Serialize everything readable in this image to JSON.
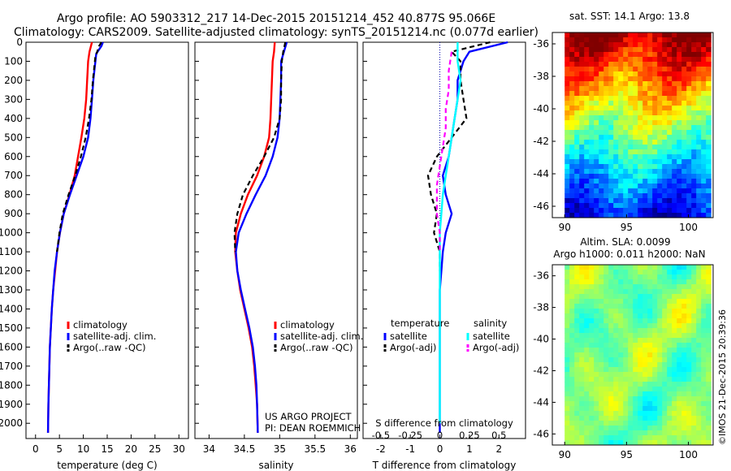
{
  "title": {
    "line1": "Argo profile: AO 5903312_217 14-Dec-2015 20151214_452 40.877S 95.066E",
    "line2": "Climatology: CARS2009. Satellite-adjusted climatology: synTS_20151214.nc (0.077d earlier)"
  },
  "colors": {
    "climatology": "#ff0000",
    "satellite": "#0000ff",
    "argo": "#000000",
    "satellite_s": "#00ffff",
    "argo_s": "#ff00ff"
  },
  "credit": {
    "project": "US ARGO PROJECT",
    "pi": "PI: DEAN ROEMMICH"
  },
  "stamp": "©IMOS 21-Dec-2015 20:39:36",
  "chart_data": [
    {
      "type": "line",
      "id": "temperature",
      "xlabel": "temperature (deg C)",
      "ylabel": "",
      "xlim": [
        -2,
        32
      ],
      "ylim": [
        2080,
        0
      ],
      "xticks": [
        0,
        5,
        10,
        15,
        20,
        25,
        30
      ],
      "yticks": [
        0,
        100,
        200,
        300,
        400,
        500,
        600,
        700,
        800,
        900,
        1000,
        1100,
        1200,
        1300,
        1400,
        1500,
        1600,
        1700,
        1800,
        1900,
        2000
      ],
      "legend": [
        "climatology",
        "satellite-adj. clim.",
        "Argo(..raw -QC)"
      ],
      "series": [
        {
          "name": "climatology",
          "color": "#ff0000",
          "x": [
            11.8,
            11.3,
            11.0,
            10.8,
            10.6,
            10.2,
            9.6,
            8.9,
            8.2,
            7.1,
            5.9,
            5.1,
            4.5,
            4.1,
            3.7,
            3.4,
            3.2,
            3.0,
            2.9,
            2.8,
            2.7,
            2.6
          ],
          "y": [
            0,
            50,
            100,
            200,
            300,
            400,
            500,
            600,
            700,
            800,
            900,
            1000,
            1100,
            1200,
            1300,
            1400,
            1500,
            1600,
            1700,
            1800,
            1900,
            2050
          ]
        },
        {
          "name": "satellite-adj. clim.",
          "color": "#0000ff",
          "x": [
            14.1,
            13.8,
            12.7,
            12.1,
            11.8,
            11.5,
            11.0,
            10.0,
            8.6,
            7.2,
            5.9,
            5.1,
            4.5,
            4.0,
            3.7,
            3.4,
            3.2,
            3.0,
            2.9,
            2.8,
            2.7,
            2.6
          ],
          "y": [
            0,
            20,
            60,
            200,
            300,
            400,
            500,
            600,
            700,
            800,
            900,
            1000,
            1100,
            1200,
            1300,
            1400,
            1500,
            1600,
            1700,
            1800,
            1900,
            2050
          ]
        },
        {
          "name": "Argo(..raw -QC)",
          "color": "#000000",
          "dashed": true,
          "x": [
            13.8,
            13.3,
            12.5,
            12.0,
            11.7,
            11.2,
            10.5,
            9.5,
            8.3,
            6.9,
            5.7,
            5.0,
            4.5
          ],
          "y": [
            0,
            20,
            80,
            200,
            300,
            400,
            500,
            600,
            700,
            800,
            900,
            1000,
            1100
          ]
        }
      ]
    },
    {
      "type": "line",
      "id": "salinity",
      "xlabel": "salinity",
      "ylabel": "",
      "xlim": [
        33.8,
        36.1
      ],
      "ylim": [
        2080,
        0
      ],
      "xticks": [
        34,
        34.5,
        35,
        35.5,
        36
      ],
      "legend": [
        "climatology",
        "satellite-adj. clim.",
        "Argo(..raw -QC)"
      ],
      "series": [
        {
          "name": "climatology",
          "color": "#ff0000",
          "x": [
            34.93,
            34.92,
            34.9,
            34.89,
            34.88,
            34.87,
            34.85,
            34.78,
            34.68,
            34.55,
            34.45,
            34.38,
            34.37,
            34.4,
            34.44,
            34.5,
            34.56,
            34.61,
            34.64,
            34.66,
            34.68,
            34.69
          ],
          "y": [
            0,
            50,
            100,
            200,
            300,
            400,
            500,
            600,
            700,
            800,
            900,
            1000,
            1100,
            1200,
            1300,
            1400,
            1500,
            1600,
            1700,
            1800,
            1900,
            2050
          ]
        },
        {
          "name": "satellite-adj. clim.",
          "color": "#0000ff",
          "x": [
            35.1,
            35.06,
            35.02,
            35.02,
            35.01,
            35.0,
            34.97,
            34.9,
            34.8,
            34.66,
            34.53,
            34.42,
            34.38,
            34.4,
            34.45,
            34.51,
            34.57,
            34.62,
            34.65,
            34.67,
            34.68,
            34.69
          ],
          "y": [
            0,
            50,
            100,
            200,
            300,
            400,
            500,
            600,
            700,
            800,
            900,
            1000,
            1100,
            1200,
            1300,
            1400,
            1500,
            1600,
            1700,
            1800,
            1900,
            2050
          ]
        },
        {
          "name": "Argo(..raw -QC)",
          "color": "#000000",
          "dashed": true,
          "x": [
            35.08,
            35.05,
            35.03,
            35.02,
            35.02,
            35.0,
            34.92,
            34.78,
            34.62,
            34.48,
            34.4,
            34.36,
            34.37
          ],
          "y": [
            0,
            50,
            100,
            200,
            300,
            400,
            500,
            600,
            700,
            800,
            900,
            1000,
            1100
          ]
        }
      ]
    },
    {
      "type": "line",
      "id": "difference",
      "xlabel": "T difference from climatology",
      "xlabel_top": "S difference from climatology",
      "xlim": [
        -2.6,
        2.9
      ],
      "ylim": [
        2080,
        0
      ],
      "xticks": [
        -2,
        -1,
        0,
        1,
        2
      ],
      "s_ticks": [
        "-0.5",
        "-0.25",
        "0",
        "0.25",
        "0.5"
      ],
      "legend_titles": [
        "temperature",
        "salinity"
      ],
      "legend": [
        "satellite",
        "Argo(-adj)",
        "satellite",
        "Argo(-adj)"
      ],
      "series": [
        {
          "name": "temperature satellite",
          "color": "#0000ff",
          "x": [
            2.3,
            1.0,
            0.8,
            0.6,
            0.6,
            0.5,
            0.4,
            0.3,
            0.1,
            0.2,
            0.4,
            0.2,
            0.1,
            0.05,
            0.0,
            0.0,
            0.0,
            0.0,
            0.0,
            0.0,
            0.0
          ],
          "y": [
            0,
            50,
            100,
            200,
            300,
            400,
            500,
            600,
            700,
            800,
            900,
            1000,
            1100,
            1200,
            1300,
            1400,
            1500,
            1600,
            1700,
            1800,
            2050
          ]
        },
        {
          "name": "temperature Argo(-adj)",
          "color": "#000000",
          "dashed": true,
          "x": [
            1.7,
            0.4,
            0.7,
            0.7,
            0.8,
            0.9,
            0.4,
            -0.1,
            -0.4,
            -0.3,
            -0.1,
            -0.2,
            0.0,
            0.0
          ],
          "y": [
            0,
            50,
            100,
            200,
            300,
            400,
            500,
            600,
            700,
            800,
            900,
            1000,
            1100,
            1200
          ]
        },
        {
          "name": "salinity satellite",
          "color": "#00ffff",
          "x": [
            0.6,
            0.6,
            0.7,
            0.6,
            0.5,
            0.4,
            0.3,
            0.2,
            0.1,
            0.05,
            0.0,
            0.0,
            0.0,
            0.0,
            0.0,
            0.0
          ],
          "y": [
            0,
            100,
            200,
            300,
            400,
            500,
            600,
            700,
            800,
            900,
            1000,
            1200,
            1400,
            1600,
            1800,
            2000
          ]
        },
        {
          "name": "salinity Argo(-adj)",
          "color": "#ff00ff",
          "dashed": true,
          "x": [
            0.4,
            0.3,
            0.3,
            0.2,
            0.2,
            0.1,
            0.0,
            -0.1,
            -0.1,
            0.0,
            0.0
          ],
          "y": [
            50,
            150,
            250,
            350,
            450,
            550,
            650,
            750,
            900,
            1000,
            1100
          ]
        }
      ]
    },
    {
      "type": "heatmap",
      "id": "sst-map",
      "title": "sat. SST: 14.1  Argo: 13.8",
      "xlim": [
        89,
        102
      ],
      "ylim": [
        -46.7,
        -35.3
      ],
      "xticks": [
        90,
        95,
        100
      ],
      "yticks": [
        -36,
        -38,
        -40,
        -42,
        -44,
        -46
      ]
    },
    {
      "type": "heatmap",
      "id": "sla-map",
      "title_line1": "Altim. SLA: 0.0099",
      "title_line2": "Argo h1000: 0.011 h2000: NaN",
      "xlim": [
        89,
        102
      ],
      "ylim": [
        -46.7,
        -35.3
      ],
      "xticks": [
        90,
        95,
        100
      ],
      "yticks": [
        -36,
        -38,
        -40,
        -42,
        -44,
        -46
      ]
    }
  ]
}
